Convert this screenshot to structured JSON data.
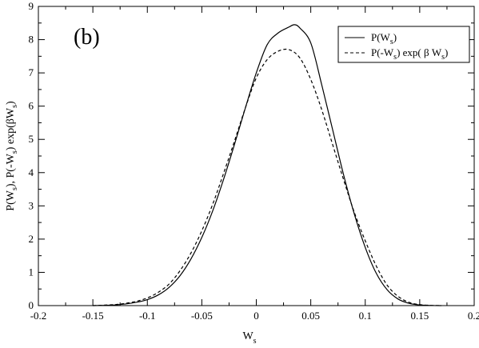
{
  "panel_label": "(b)",
  "chart_data": {
    "type": "line",
    "xlabel": "W",
    "xlabel_sub": "s",
    "ylabel": "P(W_s), P(-W_s) exp(βW_s)",
    "xlim": [
      -0.2,
      0.2
    ],
    "ylim": [
      0,
      9
    ],
    "x_ticks": [
      -0.2,
      -0.15,
      -0.1,
      -0.05,
      0,
      0.05,
      0.1,
      0.15,
      0.2
    ],
    "x_tick_labels": [
      "-0.2",
      "-0.15",
      "-0.1",
      "-0.05",
      "0",
      "0.05",
      "0.1",
      "0.15",
      "0.2"
    ],
    "y_ticks": [
      0,
      1,
      2,
      3,
      4,
      5,
      6,
      7,
      8,
      9
    ],
    "y_tick_labels": [
      "0",
      "1",
      "2",
      "3",
      "4",
      "5",
      "6",
      "7",
      "8",
      "9"
    ],
    "grid": false,
    "legend_position": "top-right",
    "series": [
      {
        "name": "P(W_s)",
        "style": "solid",
        "color": "#000000",
        "x": [
          -0.15,
          -0.13,
          -0.12,
          -0.11,
          -0.1,
          -0.09,
          -0.08,
          -0.07,
          -0.06,
          -0.05,
          -0.04,
          -0.03,
          -0.02,
          -0.01,
          0,
          0.01,
          0.02,
          0.03,
          0.035,
          0.04,
          0.05,
          0.06,
          0.07,
          0.08,
          0.09,
          0.1,
          0.11,
          0.12,
          0.13,
          0.14,
          0.15,
          0.16,
          0.17
        ],
        "y": [
          0.0,
          0.02,
          0.05,
          0.1,
          0.18,
          0.32,
          0.55,
          0.9,
          1.4,
          2.05,
          2.85,
          3.8,
          4.85,
          5.95,
          7.0,
          7.85,
          8.2,
          8.38,
          8.45,
          8.35,
          7.9,
          6.65,
          5.3,
          3.95,
          2.75,
          1.75,
          0.98,
          0.48,
          0.2,
          0.07,
          0.02,
          0.005,
          0.0
        ]
      },
      {
        "name": "P(-W_s) exp( β W_s)",
        "style": "dashed",
        "color": "#000000",
        "x": [
          -0.15,
          -0.13,
          -0.12,
          -0.11,
          -0.1,
          -0.09,
          -0.08,
          -0.07,
          -0.06,
          -0.05,
          -0.04,
          -0.03,
          -0.02,
          -0.01,
          0,
          0.01,
          0.02,
          0.03,
          0.04,
          0.05,
          0.06,
          0.07,
          0.08,
          0.09,
          0.1,
          0.11,
          0.12,
          0.13,
          0.14,
          0.15,
          0.16,
          0.17
        ],
        "y": [
          0.0,
          0.03,
          0.07,
          0.13,
          0.23,
          0.4,
          0.65,
          1.05,
          1.58,
          2.25,
          3.05,
          3.98,
          4.95,
          5.95,
          6.85,
          7.4,
          7.65,
          7.7,
          7.45,
          6.8,
          5.9,
          4.85,
          3.8,
          2.8,
          1.95,
          1.2,
          0.62,
          0.28,
          0.1,
          0.03,
          0.008,
          0.0
        ]
      }
    ]
  }
}
